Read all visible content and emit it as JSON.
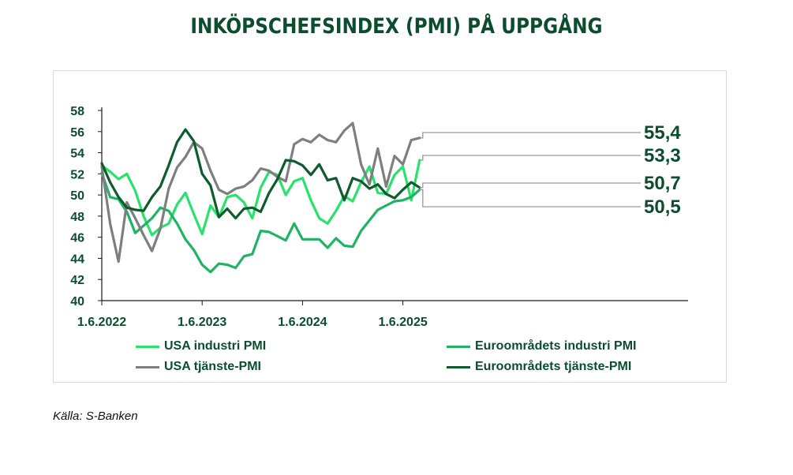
{
  "title": "INKÖPSCHEFSINDEX (PMI) PÅ UPPGÅNG",
  "source": "Källa: S-Banken",
  "colors": {
    "usa_industri": "#27e36c",
    "euro_industri": "#1fb463",
    "usa_tjanste": "#7f7f7f",
    "euro_tjanste": "#0e5c2e",
    "text": "#0b4d2e"
  },
  "chart_data": {
    "type": "line",
    "ylim": [
      40,
      58
    ],
    "yticks": [
      "40",
      "42",
      "44",
      "46",
      "48",
      "50",
      "52",
      "54",
      "56",
      "58"
    ],
    "xticks": [
      "1.6.2022",
      "1.6.2023",
      "1.6.2024",
      "1.6.2025"
    ],
    "x_start": "2022-06",
    "x_end": "2025-12",
    "series": [
      {
        "name": "USA industri PMI",
        "color_key": "usa_industri",
        "values": [
          52.8,
          52.2,
          51.5,
          52.0,
          50.4,
          48.0,
          46.2,
          46.9,
          47.3,
          49.1,
          50.2,
          48.2,
          46.3,
          49.0,
          47.9,
          49.8,
          50.0,
          49.3,
          47.8,
          50.7,
          52.2,
          51.9,
          50.0,
          51.3,
          51.6,
          49.5,
          47.8,
          47.3,
          48.5,
          49.9,
          49.4,
          51.2,
          52.7,
          50.2,
          50.1,
          51.9,
          52.7,
          49.5,
          53.3
        ]
      },
      {
        "name": "Euroområdets industri PMI",
        "color_key": "euro_industri",
        "values": [
          52.1,
          49.8,
          49.6,
          48.4,
          46.4,
          47.1,
          47.8,
          48.8,
          48.5,
          47.3,
          45.8,
          44.8,
          43.4,
          42.7,
          43.5,
          43.4,
          43.1,
          44.2,
          44.4,
          46.6,
          46.5,
          46.1,
          45.7,
          47.3,
          45.8,
          45.8,
          45.8,
          45.0,
          45.9,
          45.2,
          45.1,
          46.6,
          47.6,
          48.6,
          49.0,
          49.4,
          49.5,
          49.8,
          50.5
        ]
      },
      {
        "name": "USA tjänste-PMI",
        "color_key": "usa_tjanste",
        "values": [
          52.7,
          47.3,
          43.7,
          49.3,
          47.8,
          46.2,
          44.7,
          46.8,
          50.6,
          52.6,
          53.6,
          55.0,
          54.4,
          52.3,
          50.5,
          50.1,
          50.6,
          50.8,
          51.4,
          52.5,
          52.3,
          51.7,
          51.3,
          54.8,
          55.3,
          55.0,
          55.7,
          55.2,
          55.0,
          56.1,
          56.8,
          52.9,
          51.0,
          54.4,
          50.8,
          53.7,
          52.9,
          55.2,
          55.4
        ]
      },
      {
        "name": "Euroområdets tjänste-PMI",
        "color_key": "euro_tjanste",
        "values": [
          53.0,
          51.2,
          49.8,
          48.8,
          48.6,
          48.5,
          49.8,
          50.8,
          52.8,
          55.0,
          56.2,
          55.1,
          52.0,
          50.9,
          47.9,
          48.7,
          47.8,
          48.7,
          48.8,
          48.4,
          50.2,
          51.5,
          53.3,
          53.2,
          52.8,
          51.9,
          52.9,
          51.4,
          51.6,
          49.5,
          51.6,
          51.3,
          50.6,
          51.0,
          50.1,
          49.7,
          50.5,
          51.2,
          50.7
        ]
      }
    ],
    "end_labels": [
      {
        "text": "55,4",
        "series": "USA tjänste-PMI"
      },
      {
        "text": "53,3",
        "series": "USA industri PMI"
      },
      {
        "text": "50,7",
        "series": "Euroområdets tjänste-PMI"
      },
      {
        "text": "50,5",
        "series": "Euroområdets industri PMI"
      }
    ],
    "legend": "bottom",
    "grid": false
  }
}
